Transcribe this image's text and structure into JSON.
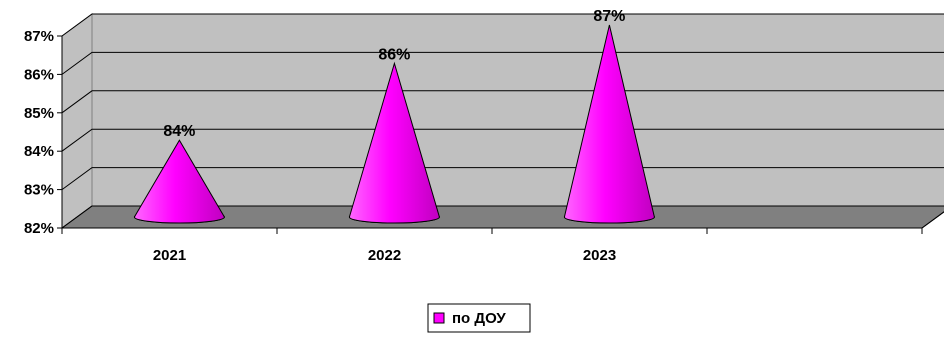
{
  "chart_data": {
    "type": "bar",
    "bar_shape": "cone",
    "style": "3d",
    "categories": [
      "2021",
      "2022",
      "2023"
    ],
    "series": [
      {
        "name": "по ДОУ",
        "values": [
          84,
          86,
          87
        ]
      }
    ],
    "data_labels": [
      "84%",
      "86%",
      "87%"
    ],
    "y_ticks": [
      82,
      83,
      84,
      85,
      86,
      87
    ],
    "y_tick_labels": [
      "82%",
      "83%",
      "84%",
      "85%",
      "86%",
      "87%"
    ],
    "ylim": [
      82,
      87
    ],
    "grid": true,
    "legend_placement": "bottom-center",
    "colors": {
      "series": "#ff00ff",
      "series_shade": "#cc00cc",
      "wall": "#c0c0c0",
      "floor": "#808080",
      "grid": "#000000"
    }
  }
}
